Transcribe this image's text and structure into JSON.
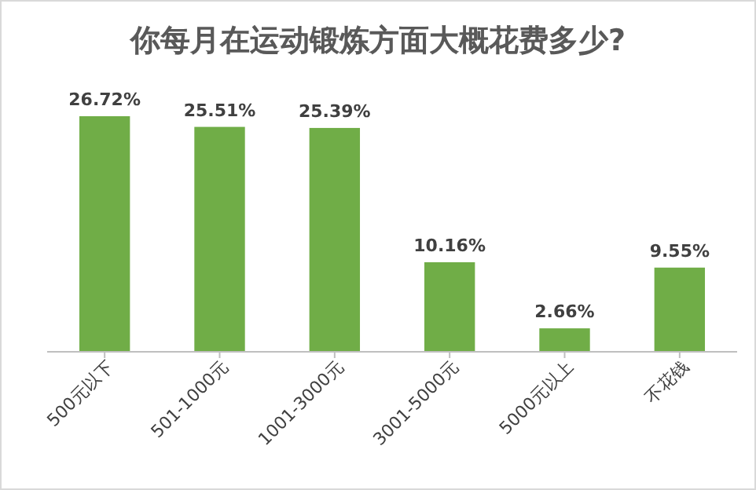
{
  "chart_data": {
    "type": "bar",
    "title": "你每月在运动锻炼方面大概花费多少?",
    "categories": [
      "500元以下",
      "501-1000元",
      "1001-3000元",
      "3001-5000元",
      "5000元以上",
      "不花钱"
    ],
    "values": [
      26.72,
      25.51,
      25.39,
      10.16,
      2.66,
      9.55
    ],
    "value_labels": [
      "26.72%",
      "25.51%",
      "25.39%",
      "10.16%",
      "2.66%",
      "9.55%"
    ],
    "color": "#70ad47"
  }
}
